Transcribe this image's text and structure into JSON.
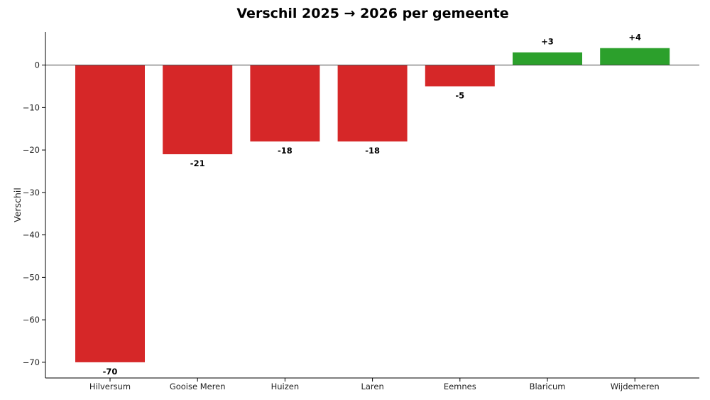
{
  "chart_data": {
    "type": "bar",
    "title": "Verschil 2025 → 2026 per gemeente",
    "xlabel": "",
    "ylabel": "Verschil",
    "categories": [
      "Hilversum",
      "Gooise Meren",
      "Huizen",
      "Laren",
      "Eemnes",
      "Blaricum",
      "Wijdemeren"
    ],
    "values": [
      -70,
      -21,
      -18,
      -18,
      -5,
      3,
      4
    ],
    "data_labels": [
      "-70",
      "-21",
      "-18",
      "-18",
      "-5",
      "+3",
      "+4"
    ],
    "yticks": [
      0,
      -10,
      -20,
      -30,
      -40,
      -50,
      -60,
      -70
    ],
    "ytick_labels": [
      "0",
      "−10",
      "−20",
      "−30",
      "−40",
      "−50",
      "−60",
      "−70"
    ],
    "ylim": [
      -73.7,
      7.8
    ],
    "grid": false,
    "colors": {
      "negative": "#d62728",
      "positive": "#2ca02c"
    }
  }
}
